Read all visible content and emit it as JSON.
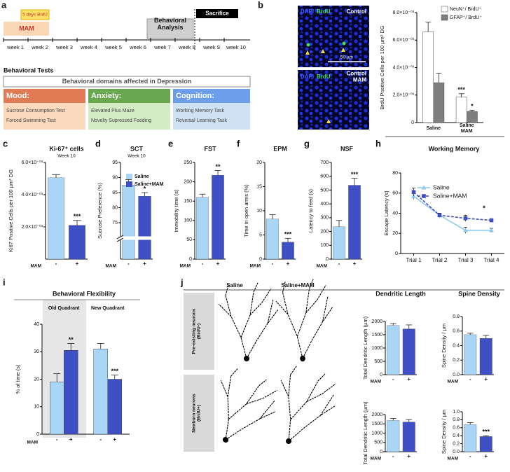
{
  "panel_labels": [
    "a",
    "b",
    "c",
    "d",
    "e",
    "f",
    "g",
    "h",
    "i",
    "j"
  ],
  "timeline": {
    "brdu": "5 days BrdU",
    "mam": "MAM",
    "analysis": "Behavioral\nAnalysis",
    "sacrifice": "Sacrifice",
    "weeks": [
      "week 1",
      "week 2",
      "week 3",
      "week 4",
      "week 5",
      "week 6",
      "week 7",
      "week 8",
      "week 9",
      "week 10"
    ]
  },
  "behavioral_tests": {
    "title": "Behavioral Tests",
    "domains": "Behavioral domains affected in Depression",
    "columns": [
      {
        "header": "Mood:",
        "items": [
          "Sucrose Consumption Test",
          "Forced Swimming Test"
        ]
      },
      {
        "header": "Anxiety:",
        "items": [
          "Elevated Plus Maze",
          "Novelty Supressed Feeding"
        ]
      },
      {
        "header": "Cognition:",
        "items": [
          "Working Memory Task",
          "Reversal Learning Task"
        ]
      }
    ]
  },
  "histology": {
    "dapi": "DAPI",
    "brdu": "BrdU",
    "top_label": "Control",
    "bottom_label": "Control\nMAM",
    "scale_bar": "50 µm"
  },
  "morphology": {
    "columns": [
      "Saline",
      "Saline+MAM"
    ],
    "rows": [
      "Pre-existing neurons\n(BrdU-)",
      "Newborn neurons\n(BrdU+)"
    ]
  },
  "chart_data": [
    {
      "type": "grouped_bar",
      "ylabel": "BrdU Positive Cells per 100 µm² DG",
      "categories": [
        "Saline",
        "Saline\nMAM"
      ],
      "series": [
        {
          "name": "NeuN⁺/ BrdU⁺",
          "color": "#ffffff",
          "values": [
            0.0066,
            0.00185
          ],
          "errors": [
            0.0007,
            0.00025
          ],
          "significance": [
            null,
            "***"
          ]
        },
        {
          "name": "GFAP⁺/ BrdU⁺",
          "color": "#7f7f7f",
          "values": [
            0.0029,
            0.0008
          ],
          "errors": [
            0.0007,
            0.0001
          ],
          "significance": [
            null,
            "*"
          ]
        }
      ],
      "ylim": [
        0,
        0.008
      ],
      "yticks": [
        0,
        {
          "value": 0.002,
          "label": "2.0×10⁻⁰³"
        },
        {
          "value": 0.004,
          "label": "4.0×10⁻⁰³"
        },
        {
          "value": 0.006,
          "label": "6.0×10⁻⁰³"
        },
        {
          "value": 0.008,
          "label": "8.0×10⁻⁰³"
        }
      ]
    },
    {
      "type": "bar",
      "title": "Ki-67⁺ cells",
      "subtitle": "Week 10",
      "ylabel": "Ki67 Positive Cells per 100 µm² DG",
      "category_axis_label": "MAM",
      "categories": [
        "-",
        "+"
      ],
      "colors": [
        "#a9d6f5",
        "#3f4fc4"
      ],
      "values": [
        0.00505,
        0.0021
      ],
      "errors": [
        0.0002,
        0.0003
      ],
      "significance": [
        null,
        "***"
      ],
      "ylim": [
        0,
        0.006
      ],
      "yticks": [
        {
          "value": 0.002,
          "label": "2.0×10⁻⁰³"
        },
        {
          "value": 0.004,
          "label": "4.0×10⁻⁰³"
        },
        {
          "value": 0.006,
          "label": "6.0×10⁻⁰³"
        }
      ]
    },
    {
      "type": "bar",
      "title": "SCT",
      "subtitle": "Week 10",
      "ylabel": "Sucrose Preference (%)",
      "category_axis_label": "MAM",
      "categories": [
        "-",
        "+"
      ],
      "colors": [
        "#a9d6f5",
        "#3f4fc4"
      ],
      "legend": [
        "Saline",
        "Saline+MAM"
      ],
      "values": [
        87.5,
        83.8
      ],
      "errors": [
        1.8,
        1.2
      ],
      "significance": [
        null,
        "*"
      ],
      "ylim": [
        75,
        95
      ],
      "yticks": [
        75,
        80,
        85,
        90,
        95
      ],
      "axis_break": true
    },
    {
      "type": "bar",
      "title": "FST",
      "ylabel": "Immobility time (s)",
      "category_axis_label": "MAM",
      "categories": [
        "-",
        "+"
      ],
      "colors": [
        "#a9d6f5",
        "#3f4fc4"
      ],
      "values": [
        160,
        217
      ],
      "errors": [
        8,
        12
      ],
      "significance": [
        null,
        "**"
      ],
      "ylim": [
        0,
        250
      ],
      "yticks": [
        0,
        50,
        100,
        150,
        200,
        250
      ]
    },
    {
      "type": "bar",
      "title": "EPM",
      "ylabel": "Time in open arms (%)",
      "category_axis_label": "MAM",
      "categories": [
        "-",
        "+"
      ],
      "colors": [
        "#a9d6f5",
        "#3f4fc4"
      ],
      "values": [
        8.3,
        3.5
      ],
      "errors": [
        0.9,
        0.8
      ],
      "significance": [
        null,
        "***"
      ],
      "ylim": [
        0,
        20
      ],
      "yticks": [
        0,
        5,
        10,
        15,
        20
      ]
    },
    {
      "type": "bar",
      "title": "NSF",
      "ylabel": "Latency to feed (s)",
      "category_axis_label": "MAM",
      "categories": [
        "-",
        "+"
      ],
      "colors": [
        "#a9d6f5",
        "#3f4fc4"
      ],
      "values": [
        235,
        535
      ],
      "errors": [
        45,
        50
      ],
      "significance": [
        null,
        "***"
      ],
      "ylim": [
        0,
        700
      ],
      "yticks": [
        0,
        100,
        200,
        300,
        400,
        500,
        600,
        700
      ]
    },
    {
      "type": "line",
      "title": "Working Memory",
      "ylabel": "Escape Latency (s)",
      "categories": [
        "Trial 1",
        "Trial 2",
        "Trial 3",
        "Trial 4"
      ],
      "series": [
        {
          "name": "Saline",
          "color": "#8fc9ee",
          "marker": "triangle",
          "dashed": false,
          "values": [
            57,
            38,
            23,
            23
          ],
          "errors": [
            3,
            2,
            3,
            2
          ]
        },
        {
          "name": "Saline+MAM",
          "color": "#3c4fc0",
          "marker": "square",
          "dashed": true,
          "values": [
            61,
            38,
            35,
            33
          ],
          "errors": [
            4,
            2,
            3,
            1.5
          ]
        }
      ],
      "annotation": "*",
      "ylim": [
        0,
        80
      ],
      "yticks": [
        0,
        20,
        40,
        60,
        80
      ]
    },
    {
      "type": "grouped_bar",
      "title": "Behavioral Flexibility",
      "ylabel": "% of time (s)",
      "categories": [
        "Old Quadrant",
        "New Quadrant"
      ],
      "category_label_position": "top",
      "subcategories": [
        "-",
        "+"
      ],
      "category_axis_label": "MAM",
      "series": [
        {
          "color": "#a9d6f5",
          "values": [
            19,
            31
          ],
          "errors": [
            3,
            2
          ]
        },
        {
          "color": "#3f4fc4",
          "values": [
            30.5,
            20
          ],
          "errors": [
            2.5,
            1.5
          ],
          "significance": [
            "**",
            "***"
          ]
        }
      ],
      "ylim": [
        0,
        40
      ],
      "yticks": [
        0,
        10,
        20,
        30,
        40
      ]
    },
    {
      "type": "bar",
      "title": "Dendritic Length",
      "ylabel": "Total Dendritic Length (µm)",
      "category_axis_label": "MAM",
      "categories": [
        "-",
        "+"
      ],
      "colors": [
        "#a9d6f5",
        "#3f4fc4"
      ],
      "values": [
        1850,
        1720
      ],
      "errors": [
        70,
        150
      ],
      "ylim": [
        0,
        2000
      ],
      "yticks": [
        0,
        500,
        1000,
        1500,
        2000
      ]
    },
    {
      "type": "bar",
      "title": "Spine Density",
      "ylabel": "Spine Density / µm",
      "category_axis_label": "MAM",
      "categories": [
        "-",
        "+"
      ],
      "colors": [
        "#a9d6f5",
        "#3f4fc4"
      ],
      "values": [
        0.55,
        0.5
      ],
      "errors": [
        0.02,
        0.04
      ],
      "ylim": [
        0,
        0.8
      ],
      "yticks": [
        {
          "value": 0,
          "label": "0.0"
        },
        0.2,
        0.4,
        0.6,
        0.8
      ]
    },
    {
      "type": "bar",
      "ylabel": "Total Dendritic Length (µm)",
      "category_axis_label": "MAM",
      "categories": [
        "-",
        "+"
      ],
      "colors": [
        "#a9d6f5",
        "#3f4fc4"
      ],
      "values": [
        1680,
        1600
      ],
      "errors": [
        110,
        130
      ],
      "ylim": [
        0,
        2000
      ],
      "yticks": [
        0,
        500,
        1000,
        1500,
        2000
      ]
    },
    {
      "type": "bar",
      "ylabel": "Spine Density / µm",
      "category_axis_label": "MAM",
      "categories": [
        "-",
        "+"
      ],
      "colors": [
        "#a9d6f5",
        "#3f4fc4"
      ],
      "values": [
        0.68,
        0.38
      ],
      "errors": [
        0.05,
        0.02
      ],
      "significance": [
        null,
        "***"
      ],
      "ylim": [
        0,
        1
      ],
      "yticks": [
        {
          "value": 0,
          "label": "0.0"
        },
        0.2,
        0.4,
        0.6,
        0.8,
        {
          "value": 1,
          "label": "1.0"
        }
      ]
    }
  ]
}
